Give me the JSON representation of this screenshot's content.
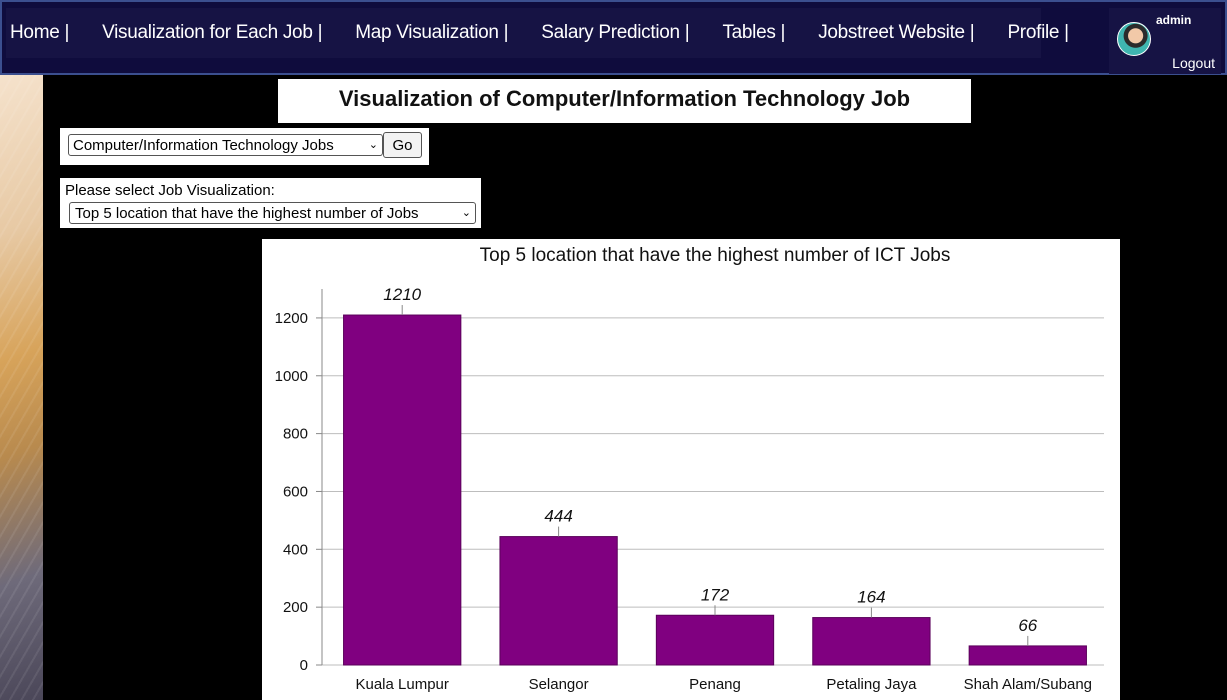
{
  "nav": {
    "items": [
      {
        "label": "Home |"
      },
      {
        "label": "Visualization for Each Job |"
      },
      {
        "label": "Map Visualization |"
      },
      {
        "label": "Salary Prediction |"
      },
      {
        "label": "Tables |"
      },
      {
        "label": "Jobstreet Website |"
      },
      {
        "label": "Profile |"
      }
    ],
    "username": "admin",
    "logout_label": "Logout"
  },
  "page": {
    "title": "Visualization of Computer/Information Technology Job"
  },
  "job_category": {
    "selected": "Computer/Information Technology Jobs",
    "go_label": "Go"
  },
  "visualization": {
    "prompt": "Please select Job Visualization:",
    "selected": "Top 5 location that have the highest number of Jobs"
  },
  "colors": {
    "nav_bg": "#161344",
    "bar": "#800080"
  },
  "chart_data": {
    "type": "bar",
    "title": "Top 5 location that have the highest number of ICT Jobs",
    "categories": [
      "Kuala Lumpur",
      "Selangor",
      "Penang",
      "Petaling Jaya",
      "Shah Alam/Subang"
    ],
    "values": [
      1210,
      444,
      172,
      164,
      66
    ],
    "value_labels": [
      "1210",
      "444",
      "172",
      "164",
      "66"
    ],
    "yticks": [
      0,
      200,
      400,
      600,
      800,
      1000,
      1200
    ],
    "ylim": [
      0,
      1300
    ],
    "grid": true,
    "xlabel": "",
    "ylabel": ""
  }
}
